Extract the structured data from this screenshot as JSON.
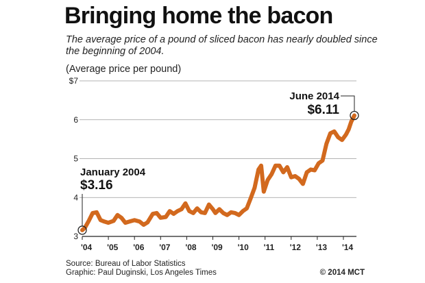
{
  "title": "Bringing home the bacon",
  "subtitle": "The average price of a pound of sliced bacon has nearly doubled since the beginning of 2004.",
  "unit_label": "(Average price per pound)",
  "footer": {
    "source": "Source: Bureau of Labor Statistics",
    "graphic": "Graphic: Paul Duginski, Los Angeles Times",
    "credit": "© 2014 MCT"
  },
  "chart_data": {
    "type": "line",
    "title": "Bringing home the bacon",
    "ylabel": "(Average price per pound)",
    "xlim": [
      2004.0,
      2014.5
    ],
    "ylim": [
      3,
      7
    ],
    "grid": true,
    "y_ticks": [
      "$7",
      "6",
      "5",
      "4",
      "3"
    ],
    "y_tick_values": [
      7,
      6,
      5,
      4,
      3
    ],
    "x_ticks": [
      "'04",
      "'05",
      "'06",
      "'07",
      "'08",
      "'09",
      "'10",
      "'11",
      "'12",
      "'13",
      "'14"
    ],
    "x_tick_values": [
      2004,
      2005,
      2006,
      2007,
      2008,
      2009,
      2010,
      2011,
      2012,
      2013,
      2014
    ],
    "line_color": "#d2691e",
    "annotations": [
      {
        "label": "January 2004",
        "value_text": "$3.16",
        "x": 2004.0,
        "y": 3.16
      },
      {
        "label": "June 2014",
        "value_text": "$6.11",
        "x": 2014.42,
        "y": 6.11
      }
    ],
    "series": [
      {
        "x": [
          2004.0,
          2004.1,
          2004.25,
          2004.4,
          2004.55,
          2004.7,
          2004.85,
          2005.0,
          2005.2,
          2005.35,
          2005.5,
          2005.65,
          2005.8,
          2006.0,
          2006.2,
          2006.35,
          2006.5,
          2006.7,
          2006.85,
          2007.0,
          2007.2,
          2007.35,
          2007.5,
          2007.65,
          2007.8,
          2007.95,
          2008.1,
          2008.25,
          2008.4,
          2008.55,
          2008.7,
          2008.85,
          2009.0,
          2009.1,
          2009.25,
          2009.4,
          2009.55,
          2009.7,
          2009.85,
          2010.0,
          2010.15,
          2010.3,
          2010.45,
          2010.6,
          2010.75,
          2010.85,
          2010.95,
          2011.1,
          2011.25,
          2011.4,
          2011.55,
          2011.7,
          2011.85,
          2012.0,
          2012.15,
          2012.3,
          2012.45,
          2012.6,
          2012.75,
          2012.9,
          2013.05,
          2013.2,
          2013.35,
          2013.5,
          2013.65,
          2013.8,
          2013.95,
          2014.1,
          2014.2,
          2014.3,
          2014.42
        ],
        "y": [
          3.16,
          3.22,
          3.4,
          3.6,
          3.62,
          3.42,
          3.38,
          3.35,
          3.4,
          3.55,
          3.48,
          3.35,
          3.38,
          3.42,
          3.38,
          3.3,
          3.36,
          3.58,
          3.6,
          3.48,
          3.5,
          3.65,
          3.58,
          3.65,
          3.7,
          3.85,
          3.65,
          3.6,
          3.72,
          3.62,
          3.6,
          3.82,
          3.7,
          3.6,
          3.7,
          3.6,
          3.55,
          3.62,
          3.6,
          3.55,
          3.65,
          3.72,
          3.98,
          4.25,
          4.72,
          4.82,
          4.15,
          4.45,
          4.6,
          4.82,
          4.82,
          4.65,
          4.78,
          4.52,
          4.55,
          4.48,
          4.35,
          4.65,
          4.72,
          4.7,
          4.88,
          4.95,
          5.38,
          5.65,
          5.7,
          5.55,
          5.48,
          5.62,
          5.75,
          5.95,
          6.11
        ]
      }
    ]
  }
}
